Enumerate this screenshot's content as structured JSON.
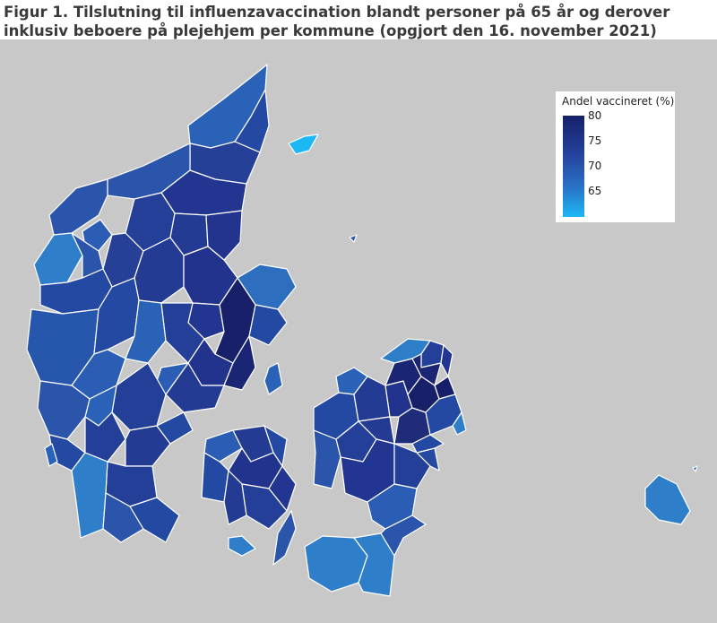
{
  "title": "Figur 1. Tilslutning til influenzavaccination blandt personer på 65 år og derover inklusiv beboere på plejehjem per kommune (opgjort den 16. november 2021)",
  "legend": {
    "title": "Andel vaccineret (%)",
    "ticks": [
      "80",
      "75",
      "70",
      "65"
    ],
    "scale_min": 60,
    "scale_max": 80,
    "color_low": "#1bb8f5",
    "color_high": "#16206a"
  },
  "colors": {
    "background": "#c8c8c8",
    "border": "#ffffff",
    "dark": "#1e2c7a",
    "mid": "#2449a3",
    "light": "#2f7ec9",
    "lightest": "#1bb8f5"
  }
}
